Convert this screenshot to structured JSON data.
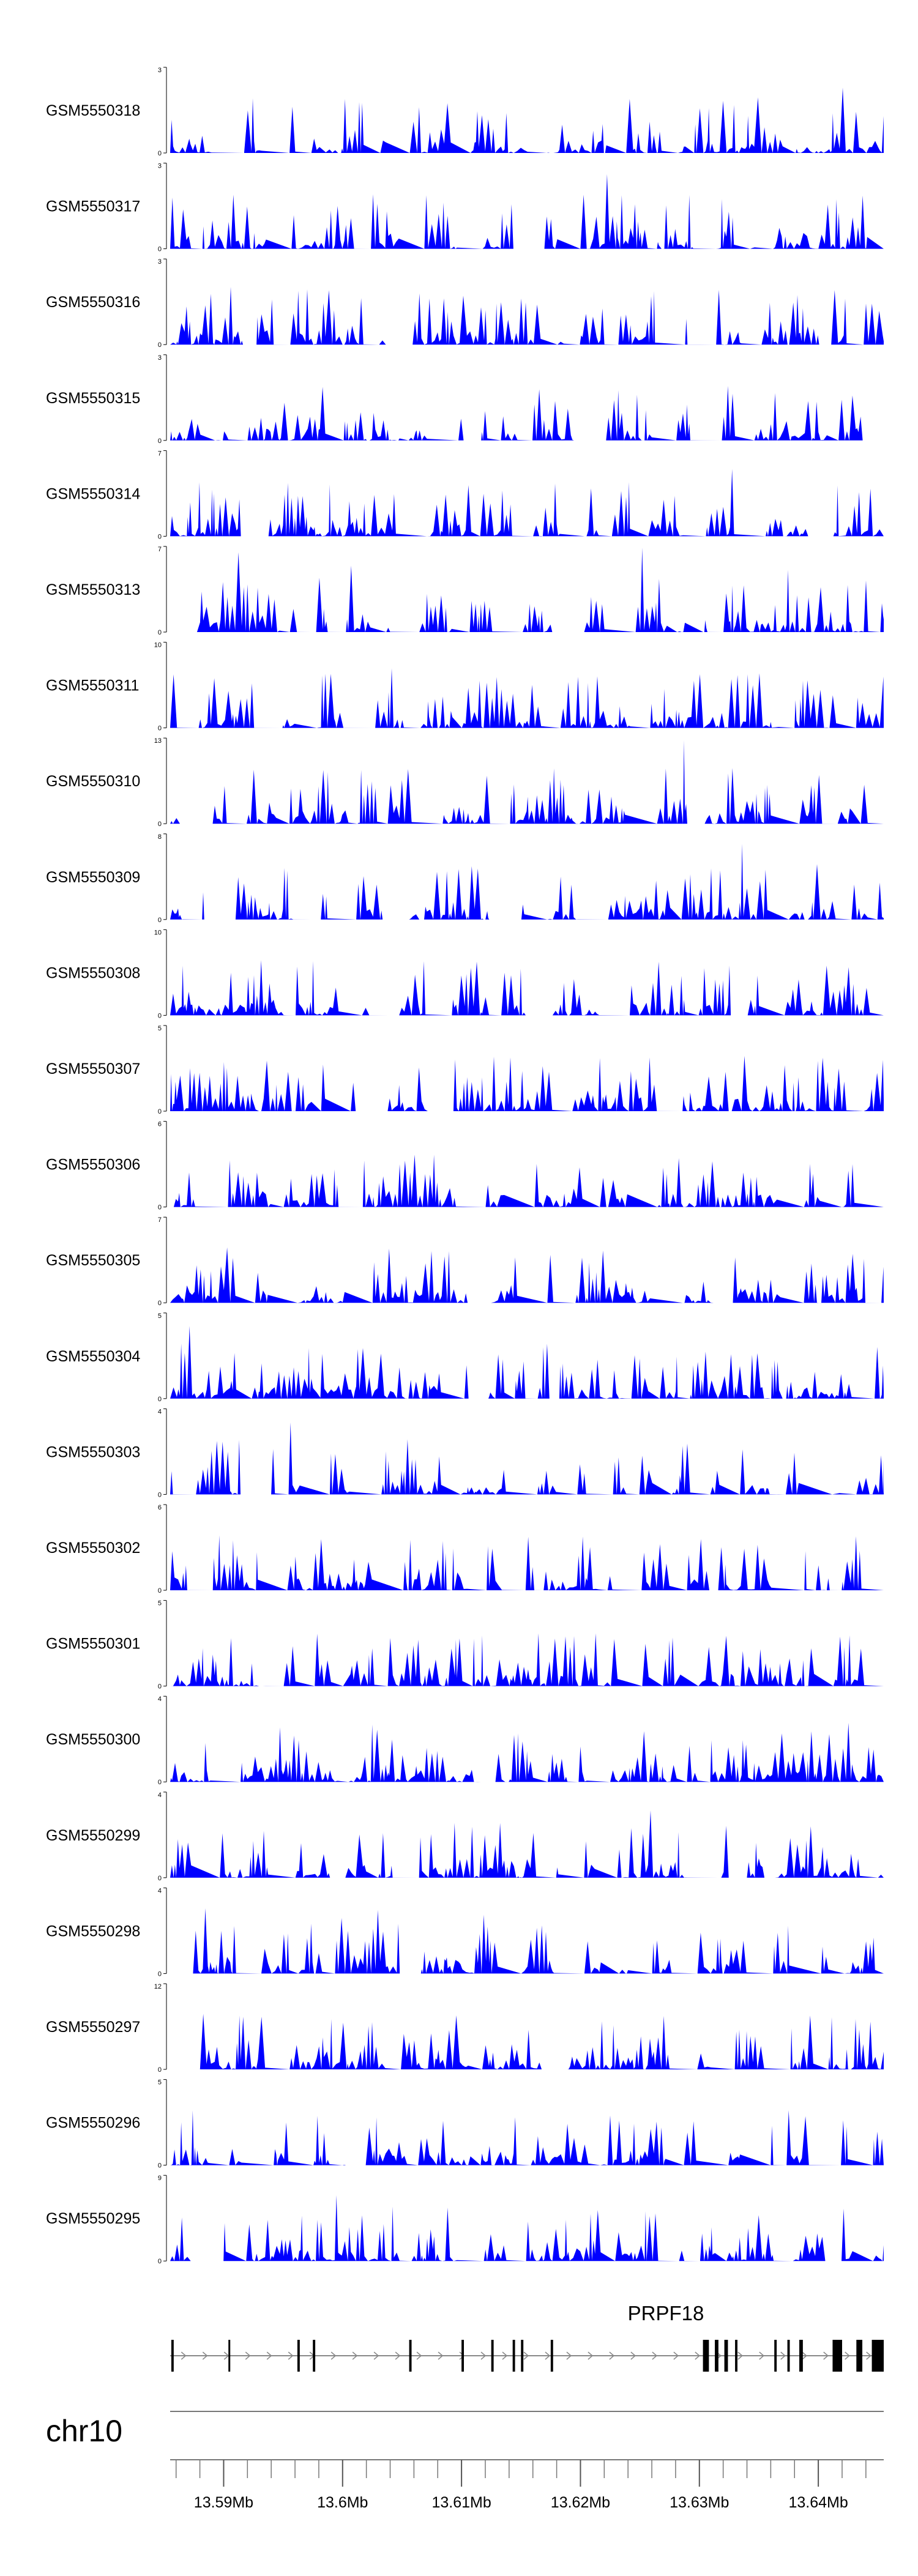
{
  "chart_data": {
    "type": "area",
    "title": "",
    "xlabel": "",
    "ylabel": "",
    "fill_color": "#0000ff",
    "genomic_axis": {
      "chromosome": "chr10",
      "range_mb": [
        13.5855,
        13.6455
      ],
      "tick_labels": [
        "13.59Mb",
        "13.6Mb",
        "13.61Mb",
        "13.62Mb",
        "13.63Mb",
        "13.64Mb"
      ],
      "tick_values_mb": [
        13.59,
        13.6,
        13.61,
        13.62,
        13.63,
        13.64
      ],
      "minor_tick_step_mb": 0.002
    },
    "series": [
      {
        "name": "GSM5550318",
        "ymax": 3,
        "ymax_label": "3",
        "ymin_label": "0"
      },
      {
        "name": "GSM5550317",
        "ymax": 3,
        "ymax_label": "3",
        "ymin_label": "0"
      },
      {
        "name": "GSM5550316",
        "ymax": 3,
        "ymax_label": "3",
        "ymin_label": "0"
      },
      {
        "name": "GSM5550315",
        "ymax": 3,
        "ymax_label": "3",
        "ymin_label": "0"
      },
      {
        "name": "GSM5550314",
        "ymax": 7,
        "ymax_label": "7",
        "ymin_label": "0"
      },
      {
        "name": "GSM5550313",
        "ymax": 7,
        "ymax_label": "7",
        "ymin_label": "0"
      },
      {
        "name": "GSM5550311",
        "ymax": 10,
        "ymax_label": "10",
        "ymin_label": "0"
      },
      {
        "name": "GSM5550310",
        "ymax": 13,
        "ymax_label": "13",
        "ymin_label": "0"
      },
      {
        "name": "GSM5550309",
        "ymax": 8,
        "ymax_label": "8",
        "ymin_label": "0"
      },
      {
        "name": "GSM5550308",
        "ymax": 10,
        "ymax_label": "10",
        "ymin_label": "0"
      },
      {
        "name": "GSM5550307",
        "ymax": 5,
        "ymax_label": "5",
        "ymin_label": "0"
      },
      {
        "name": "GSM5550306",
        "ymax": 6,
        "ymax_label": "6",
        "ymin_label": "0"
      },
      {
        "name": "GSM5550305",
        "ymax": 7,
        "ymax_label": "7",
        "ymin_label": "0"
      },
      {
        "name": "GSM5550304",
        "ymax": 5,
        "ymax_label": "5",
        "ymin_label": "0"
      },
      {
        "name": "GSM5550303",
        "ymax": 4,
        "ymax_label": "4",
        "ymin_label": "0"
      },
      {
        "name": "GSM5550302",
        "ymax": 6,
        "ymax_label": "6",
        "ymin_label": "0"
      },
      {
        "name": "GSM5550301",
        "ymax": 5,
        "ymax_label": "5",
        "ymin_label": "0"
      },
      {
        "name": "GSM5550300",
        "ymax": 4,
        "ymax_label": "4",
        "ymin_label": "0"
      },
      {
        "name": "GSM5550299",
        "ymax": 4,
        "ymax_label": "4",
        "ymin_label": "0"
      },
      {
        "name": "GSM5550298",
        "ymax": 4,
        "ymax_label": "4",
        "ymin_label": "0"
      },
      {
        "name": "GSM5550297",
        "ymax": 12,
        "ymax_label": "12",
        "ymin_label": "0"
      },
      {
        "name": "GSM5550296",
        "ymax": 5,
        "ymax_label": "5",
        "ymin_label": "0"
      },
      {
        "name": "GSM5550295",
        "ymax": 9,
        "ymax_label": "9",
        "ymin_label": "0"
      }
    ],
    "gene": {
      "name": "PRPF18",
      "strand": "+",
      "start_mb": 13.5855,
      "end_mb": 13.6455,
      "exons_mb": [
        [
          13.5856,
          13.5858
        ],
        [
          13.5904,
          13.5905
        ],
        [
          13.5962,
          13.5964
        ],
        [
          13.5975,
          13.5977
        ],
        [
          13.6056,
          13.6058
        ],
        [
          13.61,
          13.6102
        ],
        [
          13.6125,
          13.6127
        ],
        [
          13.6143,
          13.6145
        ],
        [
          13.615,
          13.6152
        ],
        [
          13.6175,
          13.6177
        ],
        [
          13.6303,
          13.6308
        ],
        [
          13.6313,
          13.6316
        ],
        [
          13.6321,
          13.6324
        ],
        [
          13.633,
          13.6332
        ],
        [
          13.6363,
          13.6365
        ],
        [
          13.6374,
          13.6376
        ],
        [
          13.6384,
          13.6387
        ],
        [
          13.6412,
          13.642
        ],
        [
          13.6432,
          13.6437
        ],
        [
          13.6445,
          13.6455
        ]
      ]
    }
  }
}
